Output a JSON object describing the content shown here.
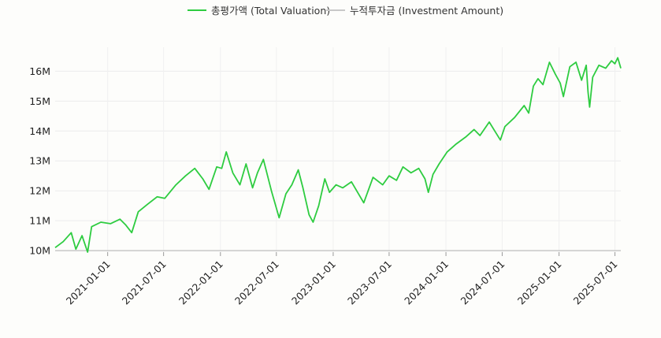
{
  "chart_data": {
    "type": "line",
    "title": "",
    "xlabel": "",
    "ylabel": "",
    "x_range": [
      "2020-07-15",
      "2025-07-20"
    ],
    "ylim": [
      9.95,
      16.8
    ],
    "y_unit": "M",
    "y_ticks": [
      10,
      11,
      12,
      13,
      14,
      15,
      16
    ],
    "y_tick_labels": [
      "10M",
      "11M",
      "12M",
      "13M",
      "14M",
      "15M",
      "16M"
    ],
    "x_ticks": [
      "2021-01-01",
      "2021-07-01",
      "2022-01-01",
      "2022-07-01",
      "2023-01-01",
      "2023-07-01",
      "2024-01-01",
      "2024-07-01",
      "2025-01-01",
      "2025-07-01"
    ],
    "x_tick_labels": [
      "2021-01-01",
      "2021-07-01",
      "2022-01-01",
      "2022-07-01",
      "2023-01-01",
      "2023-07-01",
      "2024-01-01",
      "2024-07-01",
      "2025-01-01",
      "2025-07-01"
    ],
    "grid": true,
    "legend_position": "top-center",
    "series": [
      {
        "name": "총평가액 (Total Valuation)",
        "color": "#2ecc40",
        "points": [
          [
            "2020-07-15",
            10.1
          ],
          [
            "2020-08-10",
            10.3
          ],
          [
            "2020-09-05",
            10.6
          ],
          [
            "2020-09-20",
            10.05
          ],
          [
            "2020-10-10",
            10.5
          ],
          [
            "2020-10-28",
            9.95
          ],
          [
            "2020-11-10",
            10.8
          ],
          [
            "2020-12-10",
            10.95
          ],
          [
            "2021-01-10",
            10.9
          ],
          [
            "2021-02-10",
            11.05
          ],
          [
            "2021-03-01",
            10.85
          ],
          [
            "2021-03-20",
            10.6
          ],
          [
            "2021-04-10",
            11.3
          ],
          [
            "2021-05-10",
            11.55
          ],
          [
            "2021-06-10",
            11.8
          ],
          [
            "2021-07-05",
            11.75
          ],
          [
            "2021-08-10",
            12.2
          ],
          [
            "2021-09-10",
            12.5
          ],
          [
            "2021-10-10",
            12.75
          ],
          [
            "2021-11-05",
            12.4
          ],
          [
            "2021-11-25",
            12.05
          ],
          [
            "2021-12-20",
            12.8
          ],
          [
            "2022-01-05",
            12.75
          ],
          [
            "2022-01-20",
            13.3
          ],
          [
            "2022-02-10",
            12.6
          ],
          [
            "2022-03-05",
            12.2
          ],
          [
            "2022-03-25",
            12.9
          ],
          [
            "2022-04-15",
            12.1
          ],
          [
            "2022-05-01",
            12.6
          ],
          [
            "2022-05-20",
            13.05
          ],
          [
            "2022-06-15",
            12.0
          ],
          [
            "2022-07-10",
            11.1
          ],
          [
            "2022-08-01",
            11.9
          ],
          [
            "2022-08-20",
            12.2
          ],
          [
            "2022-09-10",
            12.7
          ],
          [
            "2022-09-25",
            12.1
          ],
          [
            "2022-10-15",
            11.2
          ],
          [
            "2022-10-28",
            10.95
          ],
          [
            "2022-11-15",
            11.5
          ],
          [
            "2022-12-05",
            12.4
          ],
          [
            "2022-12-20",
            11.95
          ],
          [
            "2023-01-10",
            12.2
          ],
          [
            "2023-02-01",
            12.1
          ],
          [
            "2023-03-01",
            12.3
          ],
          [
            "2023-04-10",
            11.6
          ],
          [
            "2023-05-10",
            12.45
          ],
          [
            "2023-06-10",
            12.2
          ],
          [
            "2023-07-01",
            12.5
          ],
          [
            "2023-07-25",
            12.35
          ],
          [
            "2023-08-15",
            12.8
          ],
          [
            "2023-09-10",
            12.6
          ],
          [
            "2023-10-05",
            12.75
          ],
          [
            "2023-10-25",
            12.4
          ],
          [
            "2023-11-05",
            11.95
          ],
          [
            "2023-11-20",
            12.55
          ],
          [
            "2023-12-10",
            12.9
          ],
          [
            "2024-01-05",
            13.3
          ],
          [
            "2024-02-01",
            13.55
          ],
          [
            "2024-03-05",
            13.8
          ],
          [
            "2024-04-01",
            14.05
          ],
          [
            "2024-04-20",
            13.85
          ],
          [
            "2024-05-20",
            14.3
          ],
          [
            "2024-06-10",
            13.95
          ],
          [
            "2024-06-25",
            13.7
          ],
          [
            "2024-07-10",
            14.15
          ],
          [
            "2024-08-10",
            14.45
          ],
          [
            "2024-09-10",
            14.85
          ],
          [
            "2024-09-25",
            14.6
          ],
          [
            "2024-10-10",
            15.5
          ],
          [
            "2024-10-25",
            15.75
          ],
          [
            "2024-11-10",
            15.55
          ],
          [
            "2024-12-01",
            16.3
          ],
          [
            "2024-12-20",
            15.9
          ],
          [
            "2025-01-05",
            15.6
          ],
          [
            "2025-01-15",
            15.15
          ],
          [
            "2025-02-05",
            16.15
          ],
          [
            "2025-02-25",
            16.3
          ],
          [
            "2025-03-15",
            15.7
          ],
          [
            "2025-03-30",
            16.2
          ],
          [
            "2025-04-05",
            15.3
          ],
          [
            "2025-04-10",
            14.8
          ],
          [
            "2025-04-20",
            15.8
          ],
          [
            "2025-05-10",
            16.2
          ],
          [
            "2025-06-01",
            16.1
          ],
          [
            "2025-06-20",
            16.35
          ],
          [
            "2025-07-01",
            16.25
          ],
          [
            "2025-07-10",
            16.45
          ],
          [
            "2025-07-20",
            16.1
          ]
        ]
      },
      {
        "name": "누적투자금 (Investment Amount)",
        "color": "#c8c8c8",
        "points": [
          [
            "2020-07-15",
            10.0
          ],
          [
            "2025-07-20",
            10.0
          ]
        ]
      }
    ]
  }
}
